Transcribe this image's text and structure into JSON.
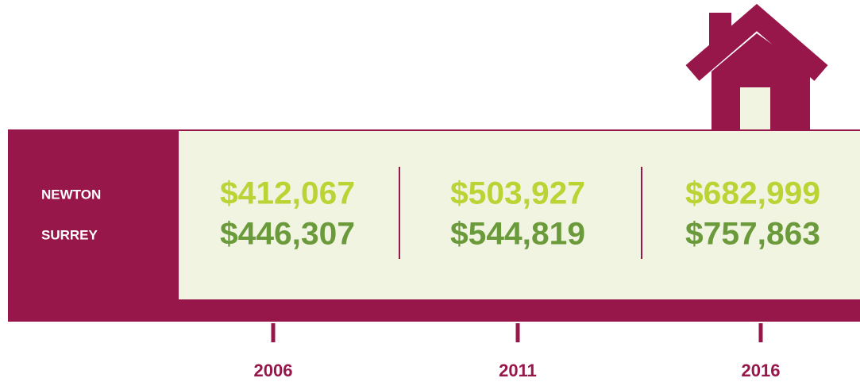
{
  "labels": [
    "NEWTON",
    "SURREY"
  ],
  "columns": [
    {
      "year": "2006",
      "values": [
        "$412,067",
        "$446,307"
      ]
    },
    {
      "year": "2011",
      "values": [
        "$503,927",
        "$544,819"
      ]
    },
    {
      "year": "2016",
      "values": [
        "$682,999",
        "$757,863"
      ]
    }
  ]
}
